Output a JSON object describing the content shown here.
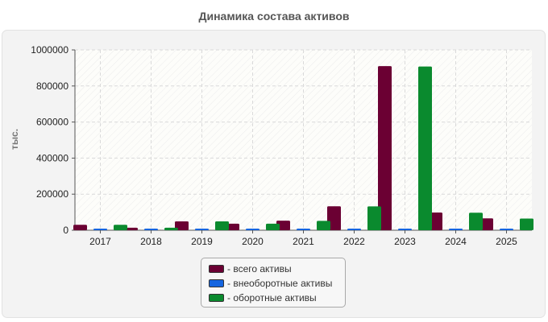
{
  "chart_data": {
    "type": "bar",
    "title": "Динамика состава активов",
    "ylabel": "тыс.",
    "xlabel": "",
    "categories": [
      "2017",
      "2018",
      "2019",
      "2020",
      "2021",
      "2022",
      "2023",
      "2024",
      "2025"
    ],
    "ylim": [
      0,
      1000000
    ],
    "yticks": [
      "0",
      "200000",
      "400000",
      "600000",
      "800000",
      "1000000"
    ],
    "grid": true,
    "legend_position": "bottom",
    "legend_prefix": "- ",
    "series": [
      {
        "name": "всего активы",
        "color": "#6b0033",
        "values": [
          30000,
          14000,
          49000,
          36000,
          53000,
          133000,
          910000,
          98000,
          66000
        ]
      },
      {
        "name": "внеоборотные активы",
        "color": "#1565e0",
        "values": [
          500,
          500,
          800,
          600,
          1500,
          2000,
          3000,
          1500,
          1000
        ]
      },
      {
        "name": "оборотные активы",
        "color": "#0a8a2e",
        "values": [
          30000,
          14000,
          49000,
          36000,
          52000,
          132000,
          908000,
          97000,
          65000
        ]
      }
    ]
  }
}
